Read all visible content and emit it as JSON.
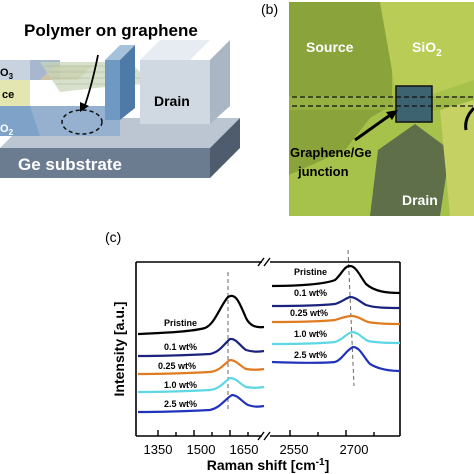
{
  "panel_a": {
    "annotation": "Polymer on graphene",
    "label_o3": "O",
    "label_o3_sub": "3",
    "label_ce": "ce",
    "label_drain": "Drain",
    "label_o2": "O",
    "label_o2_sub": "2",
    "label_substrate": "Ge substrate"
  },
  "panel_b": {
    "tag": "(b)",
    "label_source": "Source",
    "label_sio2": "SiO",
    "label_sio2_sub": "2",
    "label_junction_1": "Graphene/Ge",
    "label_junction_2": "junction",
    "label_drain": "Drain"
  },
  "panel_c": {
    "tag": "(c)",
    "ylabel": "Intensity [a.u.]",
    "xlabel": "Raman shift [cm",
    "xlabel_sup": "-1",
    "xlabel_end": "]"
  },
  "chart_data": {
    "type": "line",
    "xlabel": "Raman shift [cm-1]",
    "ylabel": "Intensity [a.u.]",
    "broken_axis": true,
    "left_range": [
      1300,
      1650
    ],
    "right_range": [
      2500,
      2780
    ],
    "left_ticks": [
      "1350",
      "1500",
      "1650"
    ],
    "right_ticks": [
      "2550",
      "2700"
    ],
    "series": [
      {
        "name": "Pristine",
        "color": "#000000"
      },
      {
        "name": "0.1 wt%",
        "color": "#1a237e"
      },
      {
        "name": "0.25 wt%",
        "color": "#e07b20"
      },
      {
        "name": "1.0 wt%",
        "color": "#5dd6e6"
      },
      {
        "name": "2.5 wt%",
        "color": "#2233bb"
      }
    ],
    "left_labels": [
      "Pristine",
      "0.1 wt%",
      "0.25 wt%",
      "1.0 wt%",
      "2.5 wt%"
    ],
    "right_labels": [
      "Pristine",
      "0.1 wt%",
      "0.25 wt%",
      "1.0 wt%",
      "2.5 wt%"
    ]
  }
}
